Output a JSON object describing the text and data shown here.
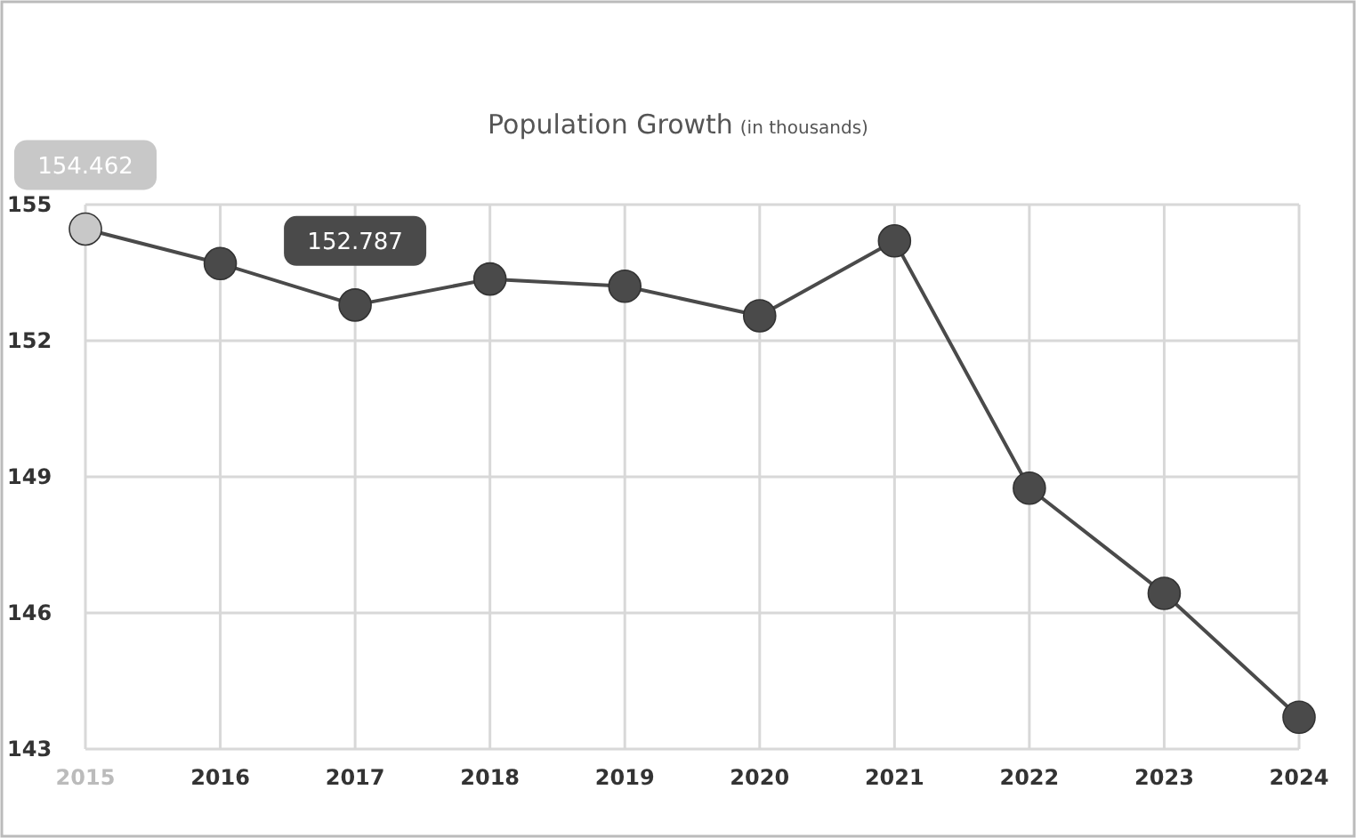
{
  "chart_data": {
    "type": "line",
    "title": "Population Growth",
    "subtitle": "(in thousands)",
    "categories": [
      "2015",
      "2016",
      "2017",
      "2018",
      "2019",
      "2020",
      "2021",
      "2022",
      "2023",
      "2024"
    ],
    "series": [
      {
        "color": "#4a4a4a",
        "colors": [
          "#c8c8c8",
          "#4a4a4a",
          "#4a4a4a",
          "#4a4a4a",
          "#4a4a4a",
          "#4a4a4a",
          "#4a4a4a",
          "#4a4a4a",
          "#4a4a4a",
          "#4a4a4a"
        ],
        "values": [
          154.462,
          153.7,
          152.787,
          153.36,
          153.2,
          152.55,
          154.2,
          148.75,
          146.43,
          143.7
        ]
      }
    ],
    "ylim": [
      143,
      155
    ],
    "yticks": [
      143,
      146,
      149,
      152,
      155
    ],
    "grid": true,
    "marker": "circle",
    "line_style": "solid",
    "annotations": [
      {
        "text": "154.462",
        "x": "2015",
        "y": 154.462
      },
      {
        "text": "152.787",
        "x": "2017",
        "y": 152.787
      }
    ]
  }
}
